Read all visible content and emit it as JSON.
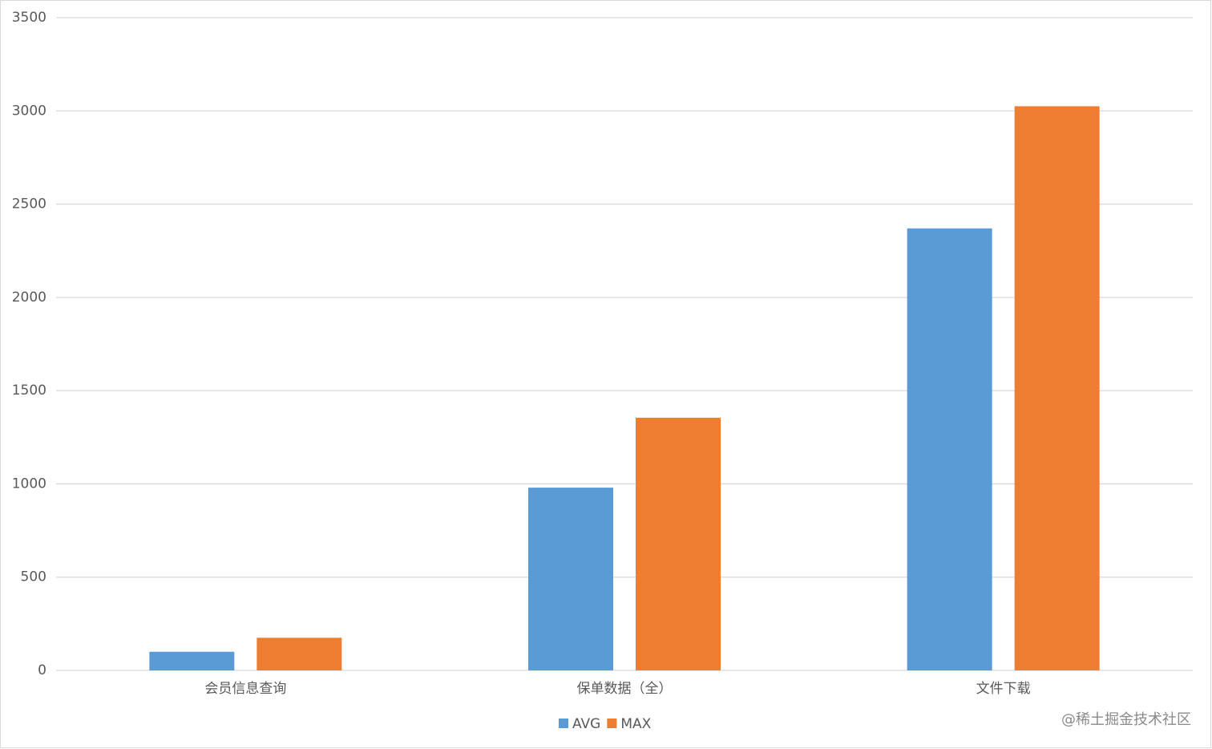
{
  "chart_data": {
    "type": "bar",
    "categories": [
      "会员信息查询",
      "保单数据（全）",
      "文件下载"
    ],
    "series": [
      {
        "name": "AVG",
        "color": "#5b9bd5",
        "values": [
          100,
          980,
          2370
        ]
      },
      {
        "name": "MAX",
        "color": "#ed7d31",
        "values": [
          175,
          1355,
          3025
        ]
      }
    ],
    "ylim": [
      0,
      3500
    ],
    "yticks": [
      0,
      500,
      1000,
      1500,
      2000,
      2500,
      3000,
      3500
    ],
    "grid": true,
    "legend": "bottom",
    "annotation": "@稀土掘金技术社区"
  }
}
